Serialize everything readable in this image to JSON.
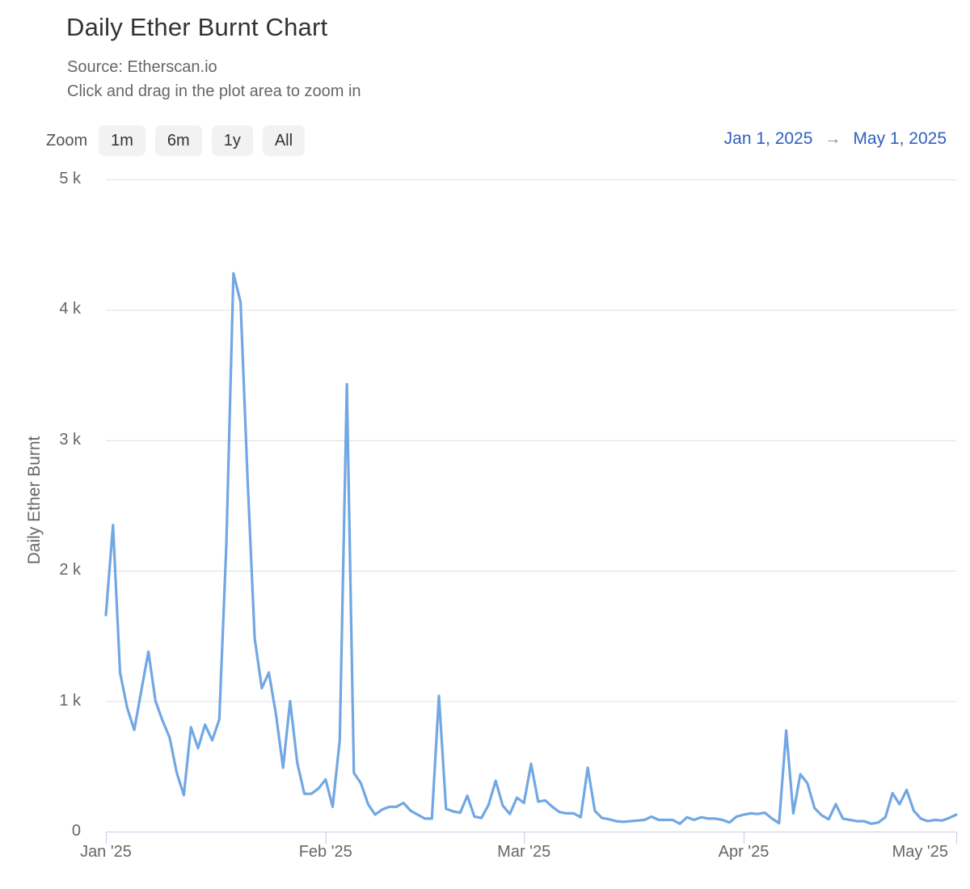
{
  "header": {
    "title": "Daily Ether Burnt Chart",
    "subtitle_source": "Source: Etherscan.io",
    "subtitle_hint": "Click and drag in the plot area to zoom in"
  },
  "toolbar": {
    "zoom_label": "Zoom",
    "buttons": [
      {
        "label": "1m"
      },
      {
        "label": "6m"
      },
      {
        "label": "1y"
      },
      {
        "label": "All"
      }
    ],
    "range": {
      "from": "Jan 1, 2025",
      "arrow": "→",
      "to": "May 1, 2025"
    }
  },
  "colors": {
    "series_line": "#71a7e3",
    "grid_line": "#e6e6e6",
    "axis_line": "#ccd6eb",
    "date_link": "#2f5fbe",
    "title_text": "#333333",
    "muted_text": "#666666",
    "button_bg": "#f2f2f2"
  },
  "chart_data": {
    "type": "line",
    "title": "Daily Ether Burnt Chart",
    "xlabel": "",
    "ylabel": "Daily Ether Burnt",
    "ylim": [
      0,
      5000
    ],
    "grid": "horizontal",
    "legend": "none",
    "frequency": "daily",
    "dates_start": "2025-01-01",
    "dates_end": "2025-05-01",
    "total_days": 120,
    "y_ticks": [
      {
        "label": "0",
        "value": 0
      },
      {
        "label": "1 k",
        "value": 1000
      },
      {
        "label": "2 k",
        "value": 2000
      },
      {
        "label": "3 k",
        "value": 3000
      },
      {
        "label": "4 k",
        "value": 4000
      },
      {
        "label": "5 k",
        "value": 5000
      }
    ],
    "x_ticks": [
      {
        "label": "Jan '25",
        "day": 0
      },
      {
        "label": "Feb '25",
        "day": 31
      },
      {
        "label": "Mar '25",
        "day": 59
      },
      {
        "label": "Apr '25",
        "day": 90
      },
      {
        "label": "May '25",
        "day": 120
      }
    ],
    "series": [
      {
        "name": "Daily Ether Burnt",
        "values": [
          1660,
          2350,
          1220,
          950,
          780,
          1080,
          1380,
          1000,
          850,
          720,
          450,
          280,
          800,
          640,
          820,
          700,
          860,
          2200,
          4280,
          4060,
          2700,
          1480,
          1100,
          1220,
          900,
          490,
          1000,
          530,
          290,
          290,
          330,
          400,
          190,
          700,
          3430,
          450,
          370,
          210,
          130,
          170,
          190,
          190,
          220,
          160,
          130,
          100,
          100,
          1040,
          175,
          155,
          145,
          275,
          115,
          105,
          205,
          390,
          200,
          135,
          260,
          220,
          520,
          230,
          240,
          190,
          150,
          140,
          140,
          110,
          490,
          160,
          105,
          95,
          80,
          75,
          80,
          85,
          90,
          115,
          90,
          90,
          90,
          60,
          110,
          90,
          110,
          100,
          100,
          90,
          70,
          115,
          130,
          140,
          135,
          145,
          100,
          65,
          775,
          140,
          440,
          370,
          180,
          125,
          95,
          210,
          100,
          90,
          80,
          80,
          60,
          70,
          110,
          295,
          210,
          320,
          160,
          100,
          80,
          90,
          85,
          105,
          130
        ]
      }
    ]
  }
}
